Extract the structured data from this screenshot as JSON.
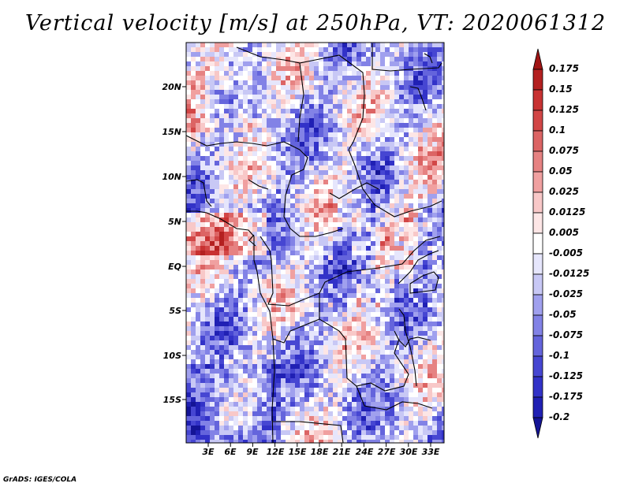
{
  "title": "Vertical velocity [m/s] at 250hPa, VT: 2020061312",
  "credit": "GrADS: IGES/COLA",
  "map": {
    "lat_labels": [
      "20N",
      "15N",
      "10N",
      "5N",
      "EQ",
      "5S",
      "10S",
      "15S"
    ],
    "lon_labels": [
      "3E",
      "6E",
      "9E",
      "12E",
      "15E",
      "18E",
      "21E",
      "24E",
      "27E",
      "30E",
      "33E"
    ]
  },
  "colorbar": {
    "levels": [
      "0.175",
      "0.15",
      "0.125",
      "0.1",
      "0.075",
      "0.05",
      "0.025",
      "0.0125",
      "0.005",
      "-0.005",
      "-0.0125",
      "-0.025",
      "-0.05",
      "-0.075",
      "-0.1",
      "-0.125",
      "-0.175",
      "-0.2"
    ],
    "colors": [
      "#a01414",
      "#b42020",
      "#c83232",
      "#d24646",
      "#dc6464",
      "#e68282",
      "#f0a0a0",
      "#f8c8c8",
      "#fde6e6",
      "#ffffff",
      "#e6e6fc",
      "#c8c8f5",
      "#a0a0ee",
      "#8282e6",
      "#6464dc",
      "#4646d2",
      "#3232c8",
      "#2020b4",
      "#141496"
    ]
  }
}
